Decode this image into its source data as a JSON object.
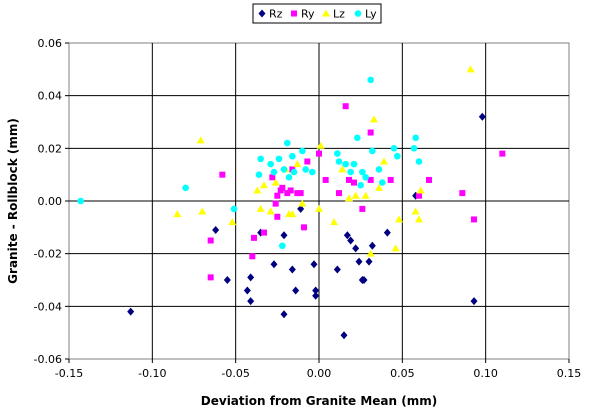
{
  "chart_data": {
    "type": "scatter",
    "title": "",
    "xlabel": "Deviation from Granite Mean (mm)",
    "ylabel": "Granite - Rollblock (mm)",
    "xlim": [
      -0.15,
      0.15
    ],
    "ylim": [
      -0.06,
      0.06
    ],
    "x_ticks": [
      "-0.15",
      "-0.10",
      "-0.05",
      "0.00",
      "0.05",
      "0.10",
      "0.15"
    ],
    "y_ticks": [
      "-0.06",
      "-0.04",
      "-0.02",
      "0.00",
      "0.02",
      "0.04",
      "0.06"
    ],
    "grid": true,
    "legend_position": "top",
    "series": [
      {
        "name": "Rz",
        "color": "#000080",
        "marker": "diamond",
        "points": [
          [
            -0.113,
            -0.042
          ],
          [
            -0.062,
            -0.011
          ],
          [
            -0.055,
            -0.03
          ],
          [
            -0.043,
            -0.034
          ],
          [
            -0.041,
            -0.038
          ],
          [
            -0.041,
            -0.029
          ],
          [
            -0.035,
            -0.012
          ],
          [
            -0.027,
            -0.024
          ],
          [
            -0.021,
            -0.013
          ],
          [
            -0.021,
            -0.043
          ],
          [
            -0.016,
            -0.026
          ],
          [
            -0.014,
            -0.034
          ],
          [
            -0.011,
            -0.003
          ],
          [
            -0.003,
            -0.024
          ],
          [
            -0.002,
            -0.034
          ],
          [
            -0.002,
            -0.036
          ],
          [
            0.011,
            -0.026
          ],
          [
            0.015,
            -0.051
          ],
          [
            0.017,
            -0.013
          ],
          [
            0.019,
            -0.015
          ],
          [
            0.022,
            -0.018
          ],
          [
            0.024,
            -0.023
          ],
          [
            0.026,
            -0.03
          ],
          [
            0.027,
            -0.03
          ],
          [
            0.03,
            -0.023
          ],
          [
            0.032,
            -0.017
          ],
          [
            0.041,
            -0.012
          ],
          [
            0.058,
            0.002
          ],
          [
            0.093,
            -0.038
          ],
          [
            0.098,
            0.032
          ]
        ]
      },
      {
        "name": "Ry",
        "color": "#ff00ff",
        "marker": "square",
        "points": [
          [
            -0.065,
            -0.029
          ],
          [
            -0.065,
            -0.015
          ],
          [
            -0.058,
            0.01
          ],
          [
            -0.04,
            -0.021
          ],
          [
            -0.039,
            -0.014
          ],
          [
            -0.033,
            -0.012
          ],
          [
            -0.028,
            0.009
          ],
          [
            -0.026,
            -0.001
          ],
          [
            -0.025,
            0.002
          ],
          [
            -0.025,
            -0.006
          ],
          [
            -0.023,
            0.004
          ],
          [
            -0.022,
            0.005
          ],
          [
            -0.019,
            0.003
          ],
          [
            -0.017,
            0.004
          ],
          [
            -0.016,
            0.012
          ],
          [
            -0.013,
            0.003
          ],
          [
            -0.011,
            0.003
          ],
          [
            -0.009,
            -0.01
          ],
          [
            -0.007,
            0.015
          ],
          [
            0.0,
            0.018
          ],
          [
            0.004,
            0.008
          ],
          [
            0.012,
            0.003
          ],
          [
            0.016,
            0.036
          ],
          [
            0.018,
            0.008
          ],
          [
            0.021,
            0.007
          ],
          [
            0.026,
            -0.003
          ],
          [
            0.031,
            0.008
          ],
          [
            0.031,
            0.026
          ],
          [
            0.043,
            0.008
          ],
          [
            0.06,
            0.002
          ],
          [
            0.066,
            0.008
          ],
          [
            0.086,
            0.003
          ],
          [
            0.093,
            -0.007
          ],
          [
            0.11,
            0.018
          ]
        ]
      },
      {
        "name": "Lz",
        "color": "#ffff00",
        "marker": "triangle",
        "points": [
          [
            -0.085,
            -0.005
          ],
          [
            -0.071,
            0.023
          ],
          [
            -0.07,
            -0.004
          ],
          [
            -0.052,
            -0.008
          ],
          [
            -0.037,
            0.004
          ],
          [
            -0.035,
            -0.003
          ],
          [
            -0.033,
            0.006
          ],
          [
            -0.029,
            -0.004
          ],
          [
            -0.026,
            0.007
          ],
          [
            -0.02,
            0.012
          ],
          [
            -0.018,
            -0.005
          ],
          [
            -0.016,
            -0.005
          ],
          [
            -0.013,
            0.014
          ],
          [
            -0.01,
            -0.001
          ],
          [
            0.0,
            -0.003
          ],
          [
            0.001,
            0.021
          ],
          [
            0.009,
            -0.008
          ],
          [
            0.014,
            0.012
          ],
          [
            0.018,
            0.001
          ],
          [
            0.022,
            0.002
          ],
          [
            0.028,
            0.002
          ],
          [
            0.031,
            -0.02
          ],
          [
            0.033,
            0.031
          ],
          [
            0.036,
            0.005
          ],
          [
            0.039,
            0.015
          ],
          [
            0.046,
            -0.018
          ],
          [
            0.048,
            -0.007
          ],
          [
            0.058,
            -0.004
          ],
          [
            0.06,
            -0.007
          ],
          [
            0.061,
            0.004
          ],
          [
            0.091,
            0.05
          ]
        ]
      },
      {
        "name": "Ly",
        "color": "#00ffff",
        "marker": "circle",
        "points": [
          [
            -0.143,
            0.0
          ],
          [
            -0.08,
            0.005
          ],
          [
            -0.051,
            -0.003
          ],
          [
            -0.036,
            0.01
          ],
          [
            -0.035,
            0.016
          ],
          [
            -0.029,
            0.014
          ],
          [
            -0.027,
            0.011
          ],
          [
            -0.024,
            0.016
          ],
          [
            -0.022,
            -0.017
          ],
          [
            -0.021,
            0.012
          ],
          [
            -0.019,
            0.022
          ],
          [
            -0.018,
            0.009
          ],
          [
            -0.016,
            0.017
          ],
          [
            -0.015,
            0.011
          ],
          [
            -0.01,
            0.019
          ],
          [
            -0.008,
            0.012
          ],
          [
            -0.004,
            0.011
          ],
          [
            0.011,
            0.018
          ],
          [
            0.012,
            0.015
          ],
          [
            0.016,
            0.014
          ],
          [
            0.019,
            0.011
          ],
          [
            0.021,
            0.014
          ],
          [
            0.023,
            0.024
          ],
          [
            0.025,
            0.006
          ],
          [
            0.026,
            0.011
          ],
          [
            0.028,
            0.009
          ],
          [
            0.031,
            0.046
          ],
          [
            0.032,
            0.019
          ],
          [
            0.036,
            0.012
          ],
          [
            0.038,
            0.007
          ],
          [
            0.045,
            0.02
          ],
          [
            0.047,
            0.017
          ],
          [
            0.057,
            0.02
          ],
          [
            0.058,
            0.024
          ],
          [
            0.06,
            0.015
          ]
        ]
      }
    ]
  }
}
